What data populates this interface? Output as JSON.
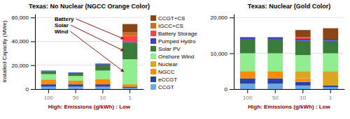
{
  "chart_data": [
    {
      "type": "bar",
      "stacked": true,
      "grid": true,
      "legend": "right",
      "title": "Texas: No Nuclear (NGCC Orange Color)",
      "xlabel": "High: Emissions (g/kWh) : Low",
      "ylabel": "Installed Capacity (MWe)",
      "categories": [
        "100",
        "50",
        "10",
        "1"
      ],
      "series": [
        {
          "name": "CCGT",
          "color": "#6EA8E0",
          "values": [
            2000,
            2000,
            2000,
            1000
          ]
        },
        {
          "name": "eCCGT",
          "color": "#2244AA",
          "values": [
            2000,
            2000,
            2000,
            1000
          ]
        },
        {
          "name": "NGCC",
          "color": "#FF8C00",
          "values": [
            4000,
            3000,
            4500,
            2000
          ]
        },
        {
          "name": "Nuclear",
          "color": "#DAA520",
          "values": [
            0,
            0,
            0,
            0
          ]
        },
        {
          "name": "Onshore Wind",
          "color": "#90EE90",
          "values": [
            4500,
            4000,
            7000,
            21000
          ]
        },
        {
          "name": "Solar PV",
          "color": "#3A7A3A",
          "values": [
            2500,
            2500,
            5000,
            14000
          ]
        },
        {
          "name": "Pumped Hydro",
          "color": "#4040CC",
          "values": [
            500,
            500,
            500,
            500
          ]
        },
        {
          "name": "Battery Storage",
          "color": "#FF4444",
          "values": [
            0,
            0,
            500,
            5000
          ]
        },
        {
          "name": "IGCC+CS",
          "color": "#D2691E",
          "values": [
            0,
            0,
            0,
            3000
          ]
        },
        {
          "name": "CCGT+CS",
          "color": "#8B4513",
          "values": [
            0,
            0,
            0,
            7000
          ]
        }
      ],
      "ylim": [
        0,
        63000
      ],
      "yticks": [
        0,
        {
          "value": 20000,
          "label": "20,000"
        },
        {
          "value": 40000,
          "label": "40,000"
        },
        {
          "value": 60000,
          "label": "60,000"
        }
      ],
      "annotations": [
        "Battery\nSolar\nWind"
      ]
    },
    {
      "type": "bar",
      "stacked": true,
      "grid": true,
      "title": "Texas: Nuclear (Gold Color)",
      "xlabel": "High: Emissions (g/kWh) : Low",
      "categories": [
        "100",
        "50",
        "10",
        "1"
      ],
      "series": [
        {
          "color": "#6EA8E0",
          "values": [
            1500,
            1500,
            1000,
            500
          ]
        },
        {
          "color": "#2244AA",
          "values": [
            1500,
            1500,
            1000,
            500
          ]
        },
        {
          "color": "#FF8C00",
          "values": [
            2000,
            2000,
            1000,
            0
          ]
        },
        {
          "color": "#DAA520",
          "values": [
            0,
            0,
            2000,
            4000
          ]
        },
        {
          "color": "#90EE90",
          "values": [
            5000,
            5000,
            4500,
            5000
          ]
        },
        {
          "color": "#3A7A3A",
          "values": [
            4000,
            4000,
            4000,
            3500
          ]
        },
        {
          "color": "#4040CC",
          "values": [
            500,
            500,
            500,
            500
          ]
        },
        {
          "color": "#FF4444",
          "values": [
            0,
            0,
            500,
            0
          ]
        },
        {
          "color": "#D2691E",
          "values": [
            0,
            0,
            0,
            0
          ]
        },
        {
          "color": "#8B4513",
          "values": [
            0,
            0,
            2000,
            3000
          ]
        }
      ],
      "ylim": [
        0,
        21000
      ],
      "yticks": [
        0,
        {
          "value": 10000,
          "label": "10,000"
        },
        {
          "value": 20000,
          "label": "20,000"
        }
      ]
    }
  ]
}
